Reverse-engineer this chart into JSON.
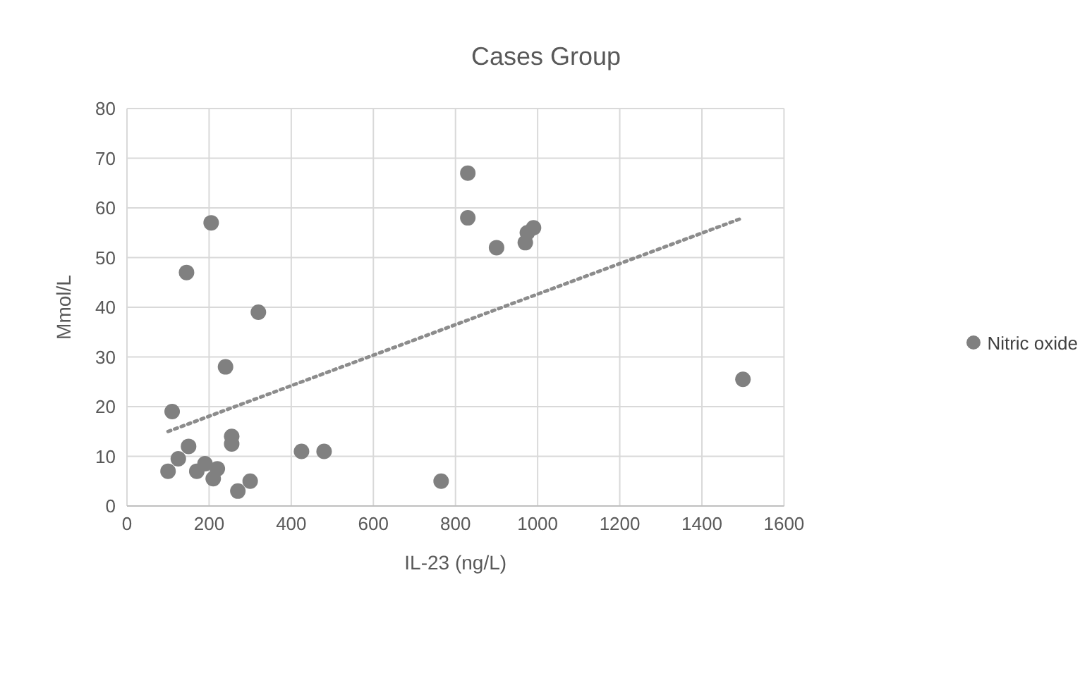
{
  "chart_data": {
    "type": "scatter",
    "title": "Cases Group",
    "xlabel": "IL-23 (ng/L)",
    "ylabel": "Mmol/L",
    "xlim": [
      0,
      1600
    ],
    "xticks": [
      0,
      200,
      400,
      600,
      800,
      1000,
      1200,
      1400,
      1600
    ],
    "ylim": [
      0,
      80
    ],
    "yticks": [
      0,
      10,
      20,
      30,
      40,
      50,
      60,
      70,
      80
    ],
    "grid": true,
    "legend": "right",
    "marker": "circle",
    "series": [
      {
        "name": "Nitric oxide",
        "color": "#808080",
        "x": [
          100,
          110,
          125,
          145,
          150,
          170,
          190,
          205,
          210,
          220,
          240,
          255,
          255,
          270,
          300,
          320,
          425,
          480,
          765,
          830,
          830,
          900,
          970,
          975,
          990,
          1500
        ],
        "values": [
          7,
          19,
          9.5,
          47,
          12,
          7,
          8.5,
          57,
          5.5,
          7.5,
          28,
          14,
          12.5,
          3,
          5,
          39,
          11,
          11,
          5,
          67,
          58,
          52,
          53,
          55,
          56,
          25.5
        ]
      },
      {
        "type": "line",
        "color": "#8c8c8c",
        "line_style": "dotted",
        "marker": "none",
        "x": [
          100,
          1500
        ],
        "values": [
          15,
          58
        ]
      }
    ]
  }
}
